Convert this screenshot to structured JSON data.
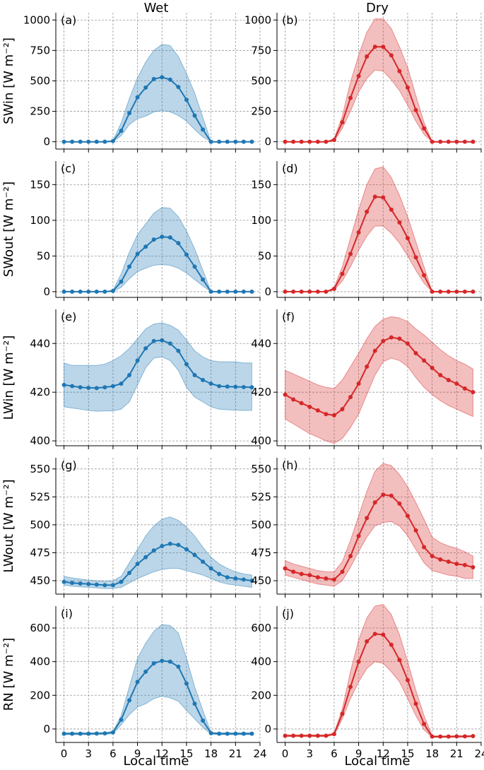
{
  "chart_data": {
    "type": "line",
    "column_titles": [
      "Wet",
      "Dry"
    ],
    "xlabel": "Local time",
    "x_ticks": [
      "0",
      "3",
      "6",
      "9",
      "12",
      "15",
      "18",
      "21",
      "24"
    ],
    "xlim": [
      -1,
      24
    ],
    "x": [
      0,
      1,
      2,
      3,
      4,
      5,
      6,
      7,
      8,
      9,
      10,
      11,
      12,
      13,
      14,
      15,
      16,
      17,
      18,
      19,
      20,
      21,
      22,
      23
    ],
    "grid": true,
    "colors": {
      "wet": "#1f77b4",
      "dry": "#d62728"
    },
    "rows": [
      {
        "ylabel": "SWin [W m⁻²]",
        "ylim": [
          -60,
          1060
        ],
        "yticks": [
          0,
          250,
          500,
          750,
          1000
        ],
        "panels": [
          {
            "tag": "(a)",
            "series": "wet",
            "mean": [
              0,
              0,
              0,
              0,
              0,
              0,
              5,
              90,
              235,
              365,
              445,
              515,
              530,
              510,
              450,
              345,
              215,
              100,
              0,
              0,
              0,
              0,
              0,
              0
            ],
            "upper": [
              0,
              0,
              0,
              0,
              0,
              0,
              10,
              155,
              355,
              525,
              655,
              750,
              800,
              790,
              700,
              560,
              400,
              200,
              0,
              0,
              0,
              0,
              0,
              0
            ],
            "lower": [
              0,
              0,
              0,
              0,
              0,
              0,
              0,
              50,
              140,
              190,
              210,
              245,
              255,
              245,
              215,
              170,
              100,
              40,
              0,
              0,
              0,
              0,
              0,
              0
            ]
          },
          {
            "tag": "(b)",
            "series": "dry",
            "mean": [
              0,
              0,
              0,
              0,
              0,
              0,
              15,
              160,
              360,
              540,
              700,
              780,
              780,
              710,
              580,
              445,
              260,
              110,
              0,
              0,
              0,
              0,
              0,
              0
            ],
            "upper": [
              0,
              0,
              0,
              0,
              0,
              0,
              25,
              210,
              490,
              710,
              900,
              1010,
              1010,
              930,
              780,
              610,
              380,
              160,
              0,
              0,
              0,
              0,
              0,
              0
            ],
            "lower": [
              0,
              0,
              0,
              0,
              0,
              0,
              5,
              110,
              250,
              410,
              520,
              590,
              580,
              510,
              420,
              300,
              170,
              60,
              0,
              0,
              0,
              0,
              0,
              0
            ]
          }
        ]
      },
      {
        "ylabel": "SWout [W m⁻²]",
        "ylim": [
          -8,
          183
        ],
        "yticks": [
          0,
          50,
          100,
          150
        ],
        "panels": [
          {
            "tag": "(c)",
            "series": "wet",
            "mean": [
              0,
              0,
              0,
              0,
              0,
              0,
              1,
              14,
              35,
              53,
              63,
              73,
              77,
              76,
              68,
              52,
              35,
              17,
              0,
              0,
              0,
              0,
              0,
              0
            ],
            "upper": [
              0,
              0,
              0,
              0,
              0,
              0,
              2,
              25,
              55,
              80,
              95,
              110,
              118,
              117,
              105,
              85,
              60,
              30,
              0,
              0,
              0,
              0,
              0,
              0
            ],
            "lower": [
              0,
              0,
              0,
              0,
              0,
              0,
              0,
              6,
              18,
              28,
              33,
              37,
              38,
              37,
              33,
              26,
              17,
              8,
              0,
              0,
              0,
              0,
              0,
              0
            ]
          },
          {
            "tag": "(d)",
            "series": "dry",
            "mean": [
              0,
              0,
              0,
              0,
              0,
              0,
              4,
              25,
              53,
              83,
              112,
              133,
              132,
              115,
              97,
              75,
              48,
              23,
              0,
              0,
              0,
              0,
              0,
              0
            ],
            "upper": [
              0,
              0,
              0,
              0,
              0,
              0,
              6,
              35,
              75,
              115,
              150,
              172,
              175,
              160,
              135,
              105,
              70,
              35,
              0,
              0,
              0,
              0,
              0,
              0
            ],
            "lower": [
              0,
              0,
              0,
              0,
              0,
              0,
              2,
              15,
              35,
              58,
              78,
              92,
              92,
              82,
              68,
              50,
              30,
              12,
              0,
              0,
              0,
              0,
              0,
              0
            ]
          }
        ]
      },
      {
        "ylabel": "LWin [W m⁻²]",
        "ylim": [
          398,
          454
        ],
        "yticks": [
          400,
          420,
          440
        ],
        "panels": [
          {
            "tag": "(e)",
            "series": "wet",
            "mean": [
              423,
              422.5,
              422,
              421.8,
              421.7,
              422,
              422.5,
              423.5,
              427,
              433,
              438,
              441,
              441.3,
              440,
              437,
              431.5,
              427,
              425,
              423.5,
              422.5,
              422.3,
              422.2,
              422.1,
              422
            ],
            "upper": [
              432,
              431,
              431,
              431,
              431,
              431.5,
              433,
              435,
              438,
              442,
              446,
              448,
              448.5,
              447.5,
              445.5,
              441.5,
              437,
              434.5,
              433,
              432.5,
              432.5,
              432.5,
              432,
              432
            ],
            "lower": [
              414,
              413.5,
              413,
              412.5,
              412.2,
              412.3,
              412.3,
              413,
              416,
              423,
              430,
              434,
              434.5,
              433,
              429,
              422,
              418,
              416,
              414,
              413,
              412.8,
              412.6,
              412.5,
              412.5
            ]
          },
          {
            "tag": "(f)",
            "series": "dry",
            "mean": [
              419,
              417,
              415.5,
              414,
              412.5,
              411,
              410.5,
              413,
              418,
              423.5,
              430.5,
              437,
              441,
              442.5,
              442,
              440,
              436,
              433,
              430,
              427,
              425,
              423.5,
              421.5,
              420
            ],
            "upper": [
              429,
              427.5,
              426,
              424.5,
              423,
              422,
              421.5,
              425,
              430.5,
              436,
              442,
              447,
              450,
              451,
              450.5,
              449,
              446,
              443.5,
              440.5,
              437.5,
              435,
              433,
              431.5,
              429.5
            ],
            "lower": [
              409,
              407,
              405,
              403,
              401.5,
              400,
              399,
              401,
              405.5,
              411,
              419,
              427,
              432.5,
              434,
              433,
              430.5,
              426,
              422,
              419,
              416.5,
              414.5,
              413,
              411.5,
              410
            ]
          }
        ]
      },
      {
        "ylabel": "LWout [W m⁻²]",
        "ylim": [
          438,
          560
        ],
        "yticks": [
          450,
          475,
          500,
          525,
          550
        ],
        "panels": [
          {
            "tag": "(g)",
            "series": "wet",
            "mean": [
              449,
              448,
              447.5,
              447,
              446.5,
              446,
              446,
              449,
              457,
              465,
              471,
              477,
              481,
              483,
              482,
              478,
              473,
              467,
              461,
              456,
              453,
              452,
              451,
              450
            ],
            "upper": [
              454,
              452.5,
              451.5,
              450.5,
              450,
              449.5,
              450,
              454,
              466,
              478,
              490,
              499,
              505,
              507,
              504,
              498,
              490,
              480,
              471,
              465,
              461,
              458,
              456,
              455
            ],
            "lower": [
              446,
              445,
              444.5,
              444,
              443.5,
              443,
              443,
              444,
              448,
              452,
              455,
              458,
              460,
              461,
              461,
              459,
              457,
              455,
              452,
              449,
              447,
              446,
              445,
              444
            ]
          },
          {
            "tag": "(h)",
            "series": "dry",
            "mean": [
              461,
              458,
              456,
              455,
              453,
              452,
              451,
              458,
              472,
              490,
              506,
              520,
              527,
              526,
              519,
              508,
              495,
              480,
              472,
              469,
              467,
              465,
              464,
              462
            ],
            "upper": [
              468,
              465,
              463,
              461,
              459,
              458,
              458,
              467,
              486,
              508,
              530,
              548,
              555,
              553,
              545,
              534,
              520,
              505,
              489,
              484,
              481,
              479,
              476,
              472
            ],
            "lower": [
              455,
              453,
              451,
              449,
              447,
              446,
              445,
              450,
              462,
              476,
              489,
              499,
              502,
              503,
              499,
              490,
              478,
              466,
              459,
              457,
              455,
              454,
              452,
              452
            ]
          }
        ]
      },
      {
        "ylabel": "RN [W m⁻²]",
        "ylim": [
          -80,
          730
        ],
        "yticks": [
          0,
          200,
          400,
          600
        ],
        "panels": [
          {
            "tag": "(i)",
            "series": "wet",
            "mean": [
              -28,
              -28,
              -28,
              -28,
              -27,
              -26,
              -20,
              55,
              170,
              280,
              340,
              390,
              405,
              400,
              370,
              270,
              150,
              50,
              -25,
              -28,
              -28,
              -28,
              -28,
              -28
            ],
            "upper": [
              -22,
              -22,
              -22,
              -22,
              -22,
              -21,
              -15,
              80,
              250,
              420,
              510,
              580,
              620,
              615,
              570,
              420,
              250,
              110,
              -20,
              -22,
              -22,
              -22,
              -22,
              -22
            ],
            "lower": [
              -34,
              -34,
              -34,
              -34,
              -33,
              -32,
              -28,
              25,
              85,
              130,
              150,
              180,
              195,
              185,
              165,
              110,
              60,
              10,
              -30,
              -34,
              -34,
              -34,
              -34,
              -34
            ]
          },
          {
            "tag": "(j)",
            "series": "dry",
            "mean": [
              -40,
              -40,
              -40,
              -40,
              -40,
              -40,
              -30,
              90,
              250,
              400,
              520,
              565,
              560,
              500,
              410,
              290,
              150,
              30,
              -45,
              -45,
              -45,
              -44,
              -44,
              -42
            ],
            "upper": [
              -35,
              -35,
              -35,
              -35,
              -35,
              -35,
              -24,
              120,
              340,
              530,
              660,
              730,
              740,
              680,
              560,
              400,
              230,
              80,
              -40,
              -41,
              -41,
              -40,
              -40,
              -38
            ],
            "lower": [
              -45,
              -45,
              -45,
              -45,
              -45,
              -45,
              -35,
              60,
              180,
              280,
              360,
              400,
              390,
              340,
              280,
              180,
              80,
              -5,
              -50,
              -50,
              -50,
              -49,
              -49,
              -47
            ]
          }
        ]
      }
    ]
  }
}
